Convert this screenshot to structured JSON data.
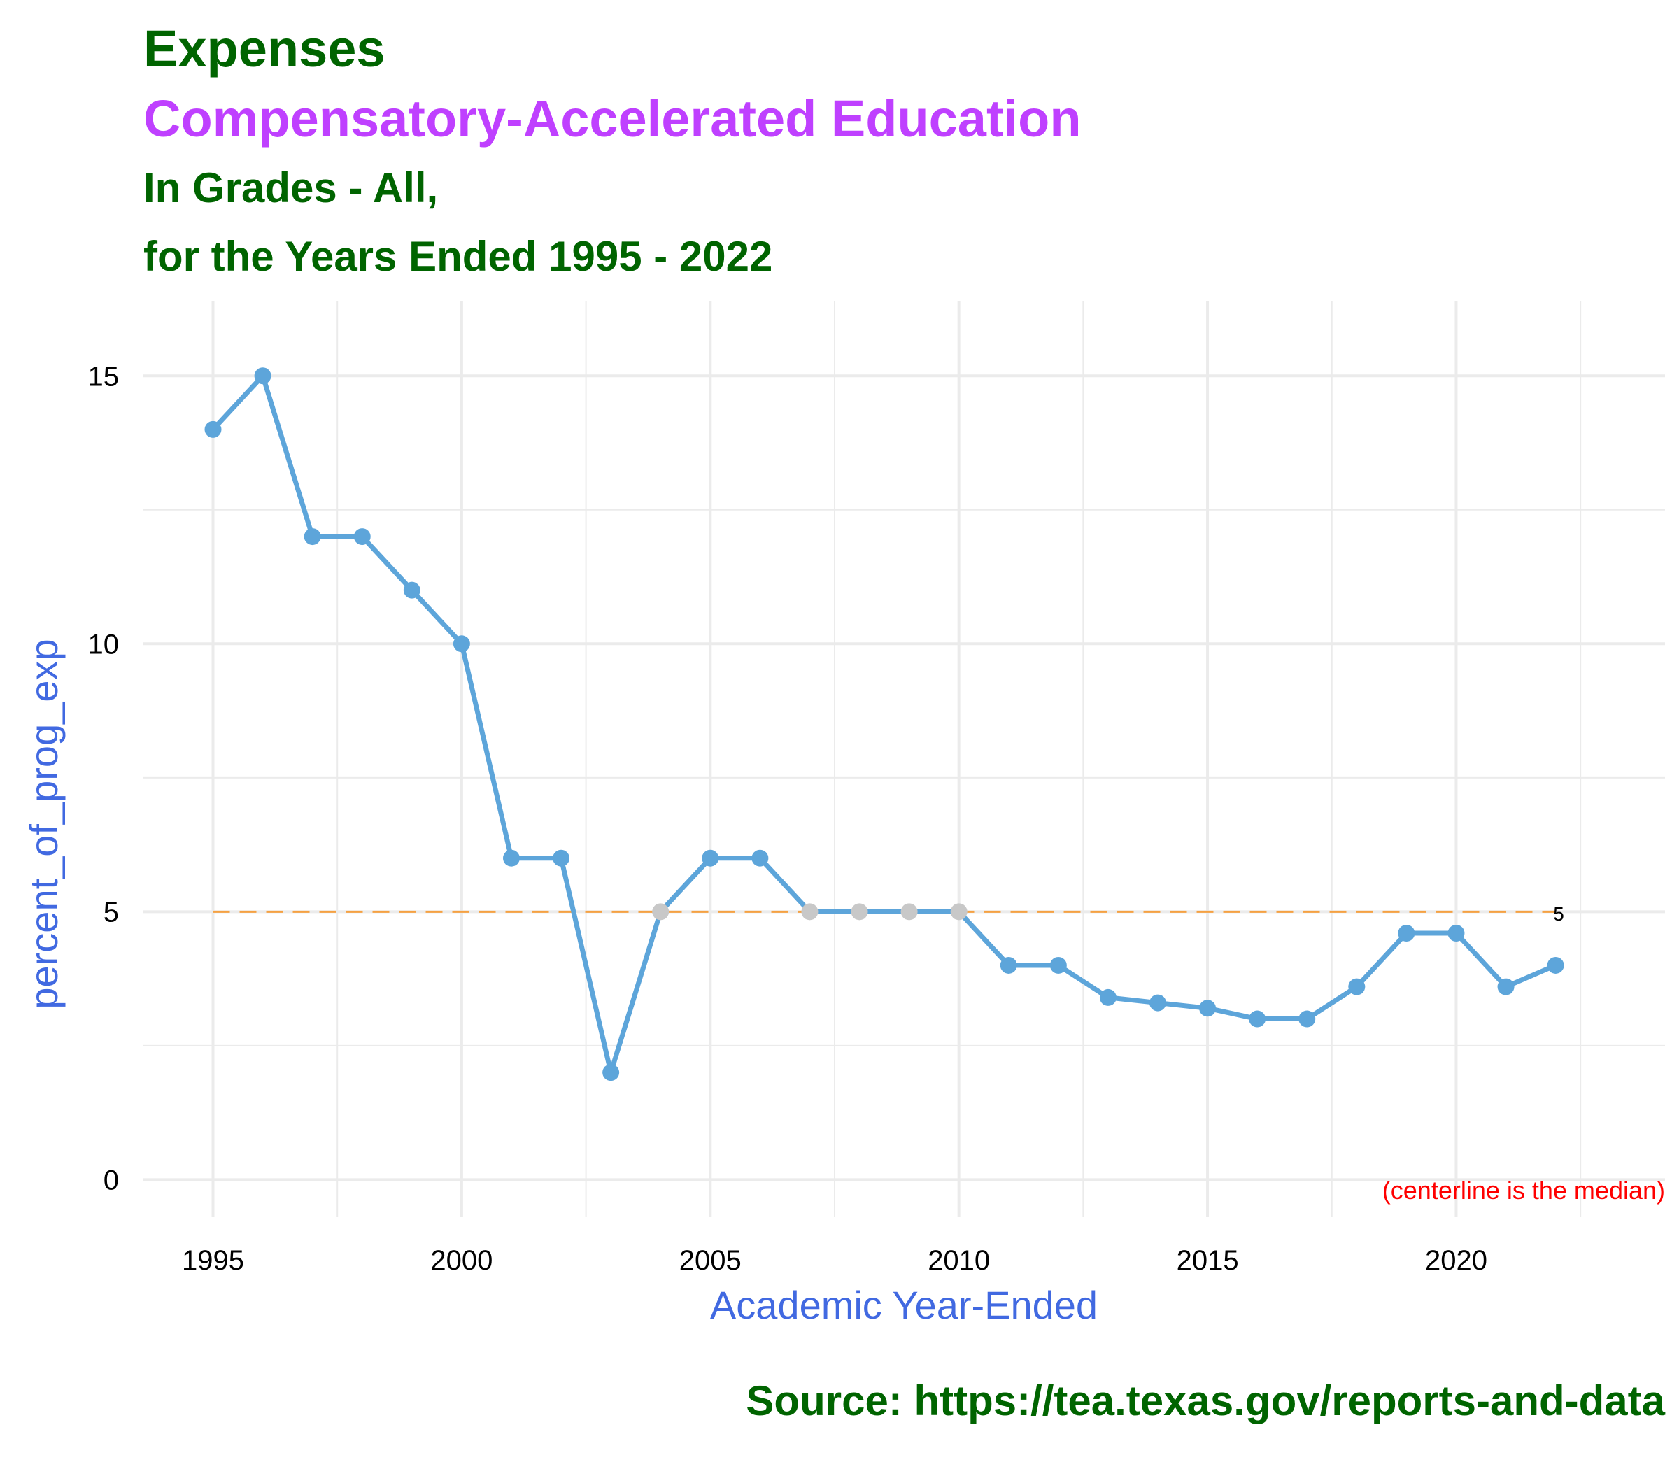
{
  "colors": {
    "title": "#006400",
    "subtitle": "#bf40ff",
    "axis_title": "#4169e1",
    "line": "#5da5da",
    "point_normal": "#5da5da",
    "point_median": "#c8c8c8",
    "median_line": "#f5a142",
    "median_label": "#000000",
    "caption": "#ff0000",
    "grid": "#ebebeb",
    "tick_text": "#000000"
  },
  "header": {
    "title": "Expenses",
    "subtitle": "Compensatory-Accelerated Education",
    "line3": "In Grades - All,",
    "line4": "for the Years Ended 1995 - 2022"
  },
  "source": "Source:  https://tea.texas.gov/reports-and-data",
  "chart_data": {
    "type": "line",
    "xlabel": "Academic Year-Ended",
    "ylabel": "percent_of_prog_exp",
    "xlim": [
      1993.6,
      2024.2
    ],
    "ylim": [
      -0.7,
      16.4
    ],
    "x_ticks": [
      1995,
      2000,
      2005,
      2010,
      2015,
      2020
    ],
    "y_ticks": [
      0,
      5,
      10,
      15
    ],
    "grid": true,
    "series": [
      {
        "x": [
          1995,
          1996,
          1997,
          1998,
          1999,
          2000,
          2001,
          2002,
          2003,
          2004,
          2005,
          2006,
          2007,
          2008,
          2009,
          2010,
          2011,
          2012,
          2013,
          2014,
          2015,
          2016,
          2017,
          2018,
          2019,
          2020,
          2021,
          2022
        ],
        "values": [
          14,
          15,
          12,
          12,
          11,
          10,
          6,
          6,
          2,
          5,
          6,
          6,
          5,
          5,
          5,
          5,
          4,
          4,
          3.4,
          3.3,
          3.2,
          3.0,
          3.0,
          3.6,
          4.6,
          4.6,
          3.6,
          4.0
        ]
      }
    ],
    "median": 5,
    "median_label": "5",
    "caption": "(centerline is the median)"
  }
}
